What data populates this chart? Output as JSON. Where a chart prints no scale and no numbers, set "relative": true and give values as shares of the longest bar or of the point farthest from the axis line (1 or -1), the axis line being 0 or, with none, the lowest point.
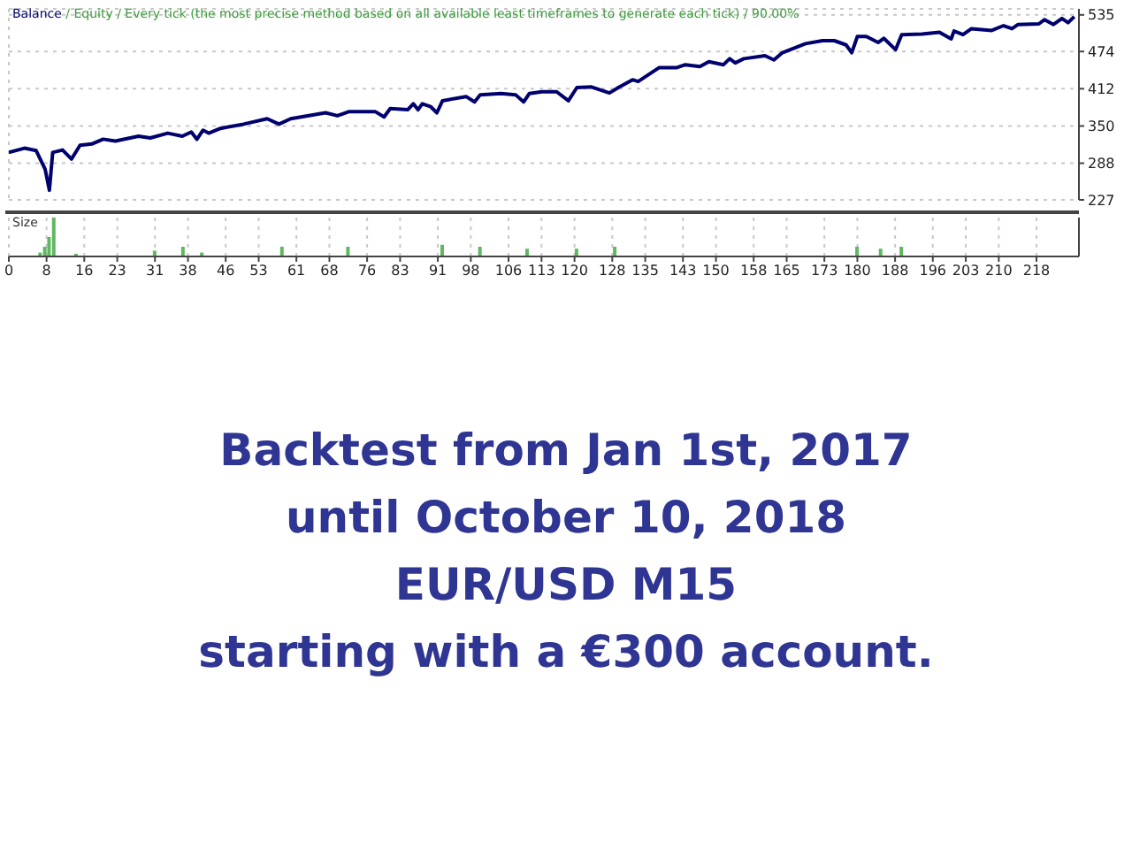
{
  "chart_data": [
    {
      "type": "line",
      "title": "/ Equity / Every tick (the most precise method based on all available least timeframes to generate each tick) / 90.00%",
      "x": [
        0,
        3.3,
        5.8,
        7.7,
        8.6,
        9.3,
        11.4,
        13.3,
        15.1,
        17.6,
        20,
        22.6,
        27.5,
        30,
        33.7,
        36.8,
        38.7,
        39.9,
        41.2,
        42.4,
        44.9,
        49.8,
        54.8,
        57.3,
        59.8,
        67.2,
        69.7,
        72.2,
        77.7,
        79.6,
        80.9,
        84.6,
        85.8,
        86.8,
        87.7,
        89.5,
        90.8,
        92,
        97,
        98.8,
        100,
        104.4,
        107.5,
        109.2,
        110.4,
        113.1,
        116.2,
        118.7,
        120.5,
        123.6,
        127.4,
        129.3,
        132.3,
        133.5,
        137.9,
        141.6,
        143.5,
        146.6,
        148.5,
        151.6,
        152.9,
        154.1,
        155.9,
        160.4,
        162.3,
        164.1,
        169,
        172.6,
        175.1,
        177.6,
        178.8,
        180,
        181.9,
        184.4,
        185.6,
        188.1,
        189.4,
        193.7,
        197.4,
        199.9,
        200.5,
        202.4,
        204.2,
        208.5,
        211,
        212.8,
        214.1,
        218.5,
        219.7,
        221.6,
        223.4,
        224.7,
        226
      ],
      "series": [
        {
          "name": "Balance",
          "color": "#00006e",
          "values": [
            306,
            313,
            309,
            278,
            243,
            306,
            310,
            295,
            318,
            320,
            328,
            325,
            333,
            330,
            338,
            333,
            340,
            328,
            343,
            338,
            346,
            353,
            362,
            353,
            362,
            372,
            367,
            374,
            374,
            365,
            379,
            377,
            387,
            377,
            387,
            382,
            372,
            392,
            399,
            390,
            402,
            404,
            402,
            390,
            404,
            407,
            407,
            392,
            414,
            415,
            405,
            414,
            427,
            424,
            447,
            447,
            452,
            449,
            457,
            452,
            462,
            455,
            462,
            467,
            460,
            472,
            487,
            492,
            492,
            485,
            472,
            499,
            499,
            489,
            496,
            477,
            502,
            503,
            506,
            495,
            508,
            502,
            512,
            509,
            517,
            512,
            519,
            520,
            527,
            519,
            529,
            522,
            532
          ]
        }
      ],
      "xlim": [
        0,
        227
      ],
      "ylim": [
        227,
        545
      ],
      "yticks": [
        227,
        288,
        350,
        412,
        474,
        535
      ],
      "tick_labels": "y",
      "grid": true,
      "legend": false
    },
    {
      "type": "bar",
      "title": "Size",
      "relative": true,
      "x": [
        6.7,
        7.7,
        8.6,
        9.6,
        14.3,
        31,
        37,
        41,
        58,
        72,
        92,
        100,
        110,
        120.5,
        128.6,
        180,
        185,
        189.4
      ],
      "series": [
        {
          "color": "#5fb85f",
          "values": [
            0.1,
            0.25,
            0.5,
            1,
            0.07,
            0.15,
            0.25,
            0.1,
            0.25,
            0.25,
            0.3,
            0.25,
            0.2,
            0.2,
            0.25,
            0.25,
            0.2,
            0.25
          ]
        }
      ],
      "xlim": [
        0,
        227
      ],
      "xticks": [
        0,
        8,
        16,
        23,
        31,
        38,
        46,
        53,
        61,
        68,
        76,
        83,
        91,
        98,
        106,
        113,
        120,
        128,
        135,
        143,
        150,
        158,
        165,
        173,
        180,
        188,
        196,
        203,
        210,
        218
      ],
      "tick_labels": "x",
      "grid": "x",
      "legend": false,
      "annotations": [
        "Backtest from Jan 1st, 2017",
        "until October 10, 2018",
        "EUR/USD M15",
        "starting with a €300 account."
      ]
    }
  ]
}
